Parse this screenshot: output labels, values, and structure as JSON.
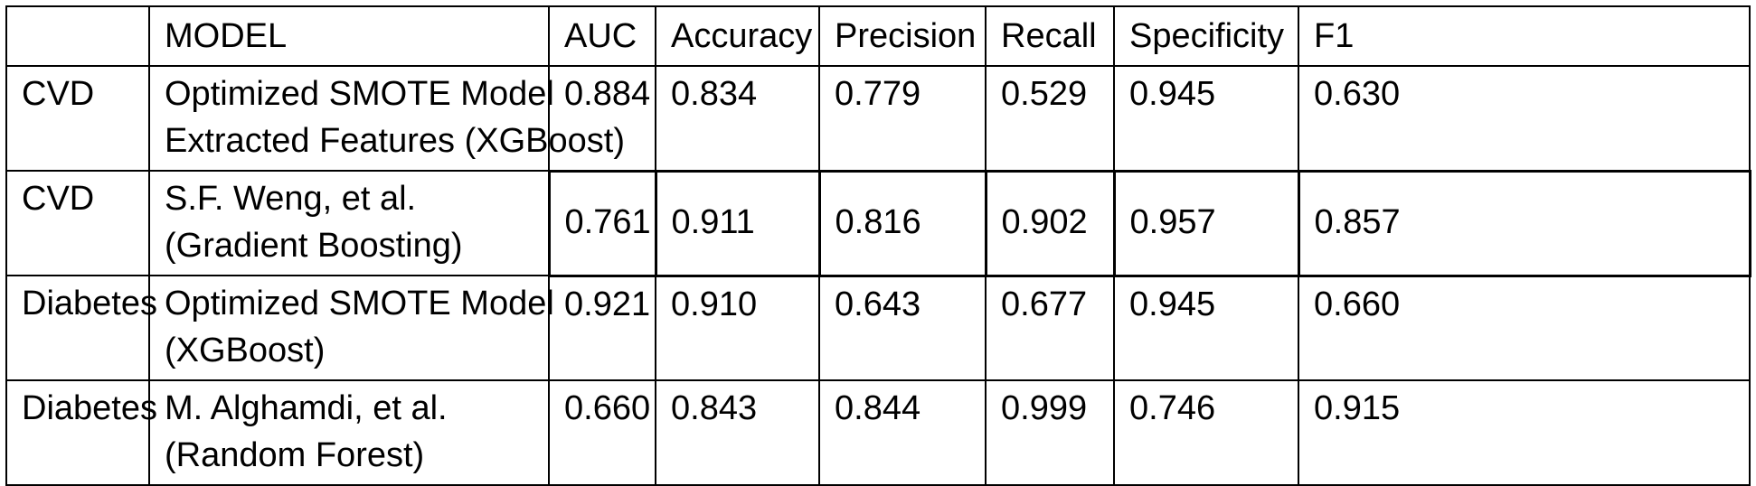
{
  "table": {
    "headers": [
      "",
      "MODEL",
      "AUC",
      "Accuracy",
      "Precision",
      "Recall",
      "Specificity",
      "F1"
    ],
    "rows": [
      {
        "dataset": "CVD",
        "model_line1": "Optimized SMOTE Model",
        "model_line2": "Extracted Features (XGBoost)",
        "auc": "0.884",
        "accuracy": "0.834",
        "precision": "0.779",
        "recall": "0.529",
        "specificity": "0.945",
        "f1": "0.630"
      },
      {
        "dataset": "CVD",
        "model_line1": "S.F. Weng, et al.",
        "model_line2": "(Gradient Boosting)",
        "auc": "0.761",
        "accuracy": "0.911",
        "precision": "0.816",
        "recall": "0.902",
        "specificity": "0.957",
        "f1": "0.857"
      },
      {
        "dataset": "Diabetes",
        "model_line1": "Optimized SMOTE Model",
        "model_line2": "(XGBoost)",
        "auc": "0.921",
        "accuracy": "0.910",
        "precision": "0.643",
        "recall": "0.677",
        "specificity": "0.945",
        "f1": "0.660"
      },
      {
        "dataset": "Diabetes",
        "model_line1": "M. Alghamdi, et al.",
        "model_line2": "(Random Forest)",
        "auc": "0.660",
        "accuracy": "0.843",
        "precision": "0.844",
        "recall": "0.999",
        "specificity": "0.746",
        "f1": "0.915"
      }
    ]
  }
}
